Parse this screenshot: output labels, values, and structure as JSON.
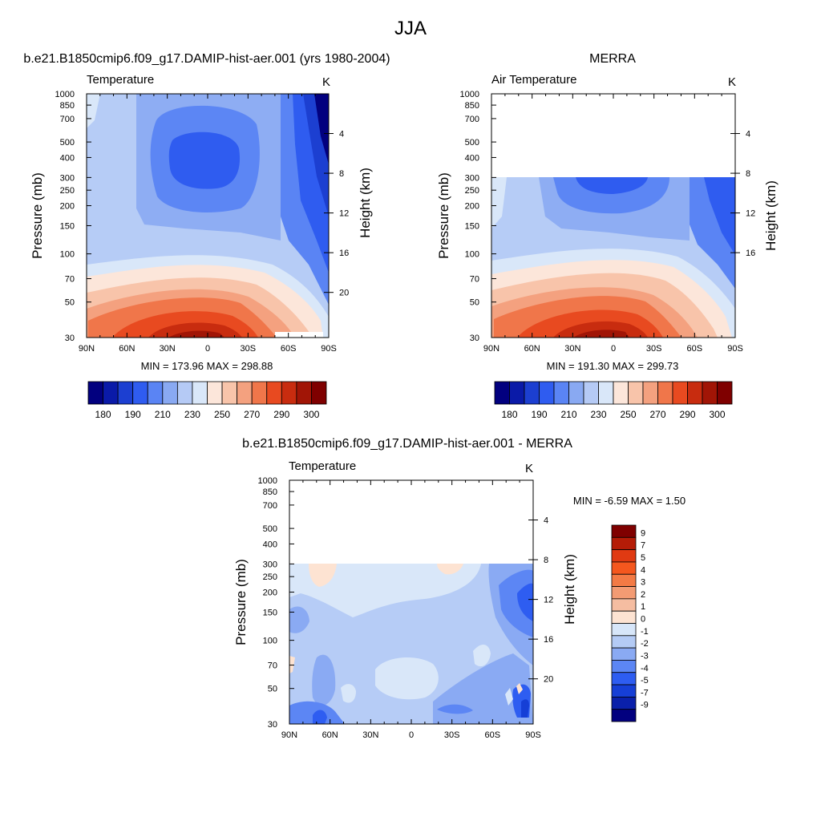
{
  "page": {
    "title": "JJA",
    "colors": {
      "background": "#ffffff",
      "frame": "#000000"
    }
  },
  "chart_data": [
    {
      "type": "heatmap",
      "plot_type": "filled contour",
      "title": "b.e21.B1850cmip6.f09_g17.DAMIP-hist-aer.001 (yrs 1980-2004)",
      "subtitle_left": "Temperature",
      "subtitle_right": "K",
      "xlabel": "",
      "ylabel": "Pressure (mb)",
      "ylabel_right": "Height (km)",
      "x_ticks": [
        "90N",
        "60N",
        "30N",
        "0",
        "30S",
        "60S",
        "90S"
      ],
      "xlim": [
        90,
        -90
      ],
      "y_scale": "log",
      "y_ticks": [
        30,
        50,
        70,
        100,
        150,
        200,
        250,
        300,
        400,
        500,
        700,
        850,
        1000
      ],
      "ylim": [
        1000,
        30
      ],
      "y2_ticks": [
        4,
        8,
        12,
        16,
        20
      ],
      "data_top_mb": 30,
      "stats": "MIN = 173.96  MAX = 298.88",
      "min": 173.96,
      "max": 298.88,
      "colorbar": {
        "orientation": "horizontal",
        "labels": [
          "180",
          "190",
          "210",
          "230",
          "250",
          "270",
          "290",
          "300"
        ],
        "colors": [
          "#02007f",
          "#0a1aa8",
          "#1c3fd1",
          "#2f5cf0",
          "#5a84f4",
          "#89a9f2",
          "#b5caf5",
          "#d9e7f9",
          "#fce6da",
          "#f8c4aa",
          "#f4a17f",
          "#f0764a",
          "#e84a20",
          "#c82c0f",
          "#a11506",
          "#7f0000"
        ]
      },
      "profile": [
        {
          "p": 1000,
          "t": 296
        },
        {
          "p": 850,
          "t": 290
        },
        {
          "p": 700,
          "t": 282
        },
        {
          "p": 500,
          "t": 268
        },
        {
          "p": 400,
          "t": 258
        },
        {
          "p": 300,
          "t": 244
        },
        {
          "p": 250,
          "t": 235
        },
        {
          "p": 200,
          "t": 222
        },
        {
          "p": 150,
          "t": 210
        },
        {
          "p": 100,
          "t": 196
        },
        {
          "p": 70,
          "t": 198
        },
        {
          "p": 50,
          "t": 205
        },
        {
          "p": 30,
          "t": 215
        }
      ]
    },
    {
      "type": "heatmap",
      "plot_type": "filled contour",
      "title": "MERRA",
      "subtitle_left": "Air Temperature",
      "subtitle_right": "K",
      "xlabel": "",
      "ylabel": "Pressure (mb)",
      "ylabel_right": "Height (km)",
      "x_ticks": [
        "90N",
        "60N",
        "30N",
        "0",
        "30S",
        "60S",
        "90S"
      ],
      "xlim": [
        90,
        -90
      ],
      "y_scale": "log",
      "y_ticks": [
        30,
        50,
        70,
        100,
        150,
        200,
        250,
        300,
        400,
        500,
        700,
        850,
        1000
      ],
      "ylim": [
        1000,
        30
      ],
      "y2_ticks": [
        4,
        8,
        12,
        16
      ],
      "data_top_mb": 100,
      "stats": "MIN = 191.30  MAX = 299.73",
      "min": 191.3,
      "max": 299.73,
      "colorbar": {
        "orientation": "horizontal",
        "labels": [
          "180",
          "190",
          "210",
          "230",
          "250",
          "270",
          "290",
          "300"
        ],
        "colors": [
          "#02007f",
          "#0a1aa8",
          "#1c3fd1",
          "#2f5cf0",
          "#5a84f4",
          "#89a9f2",
          "#b5caf5",
          "#d9e7f9",
          "#fce6da",
          "#f8c4aa",
          "#f4a17f",
          "#f0764a",
          "#e84a20",
          "#c82c0f",
          "#a11506",
          "#7f0000"
        ]
      },
      "profile": [
        {
          "p": 1000,
          "t": 297
        },
        {
          "p": 850,
          "t": 291
        },
        {
          "p": 700,
          "t": 283
        },
        {
          "p": 500,
          "t": 268
        },
        {
          "p": 400,
          "t": 258
        },
        {
          "p": 300,
          "t": 244
        },
        {
          "p": 250,
          "t": 236
        },
        {
          "p": 200,
          "t": 224
        },
        {
          "p": 150,
          "t": 212
        },
        {
          "p": 100,
          "t": 200
        }
      ]
    },
    {
      "type": "heatmap",
      "plot_type": "filled contour",
      "title": "b.e21.B1850cmip6.f09_g17.DAMIP-hist-aer.001 - MERRA",
      "subtitle_left": "Temperature",
      "subtitle_right": "K",
      "xlabel": "",
      "ylabel": "Pressure (mb)",
      "ylabel_right": "Height (km)",
      "x_ticks": [
        "90N",
        "60N",
        "30N",
        "0",
        "30S",
        "60S",
        "90S"
      ],
      "xlim": [
        90,
        -90
      ],
      "y_scale": "log",
      "y_ticks": [
        30,
        50,
        70,
        100,
        150,
        200,
        250,
        300,
        400,
        500,
        700,
        850,
        1000
      ],
      "ylim": [
        1000,
        30
      ],
      "y2_ticks": [
        4,
        8,
        12,
        16,
        20
      ],
      "data_top_mb": 100,
      "stats": "MIN =  -6.59  MAX =   1.50",
      "min": -6.59,
      "max": 1.5,
      "colorbar": {
        "orientation": "vertical",
        "labels": [
          "9",
          "7",
          "5",
          "4",
          "3",
          "2",
          "1",
          "0",
          "-1",
          "-2",
          "-3",
          "-4",
          "-5",
          "-7",
          "-9"
        ],
        "colors": [
          "#7f0000",
          "#b51c07",
          "#e03a12",
          "#f4571e",
          "#f37a45",
          "#f39b73",
          "#f5bda1",
          "#fde3d2",
          "#d7e6f9",
          "#b4cbf5",
          "#8aaaf3",
          "#5c86f4",
          "#2e5df1",
          "#163fd6",
          "#0a20aa",
          "#02007f"
        ]
      },
      "profile": [
        {
          "p": 1000,
          "t": -3
        },
        {
          "p": 850,
          "t": -2.5
        },
        {
          "p": 700,
          "t": -2
        },
        {
          "p": 500,
          "t": -1.5
        },
        {
          "p": 400,
          "t": -1.5
        },
        {
          "p": 300,
          "t": -1
        },
        {
          "p": 250,
          "t": -1
        },
        {
          "p": 200,
          "t": -1
        },
        {
          "p": 150,
          "t": -0.5
        },
        {
          "p": 100,
          "t": 0.5
        }
      ]
    }
  ]
}
